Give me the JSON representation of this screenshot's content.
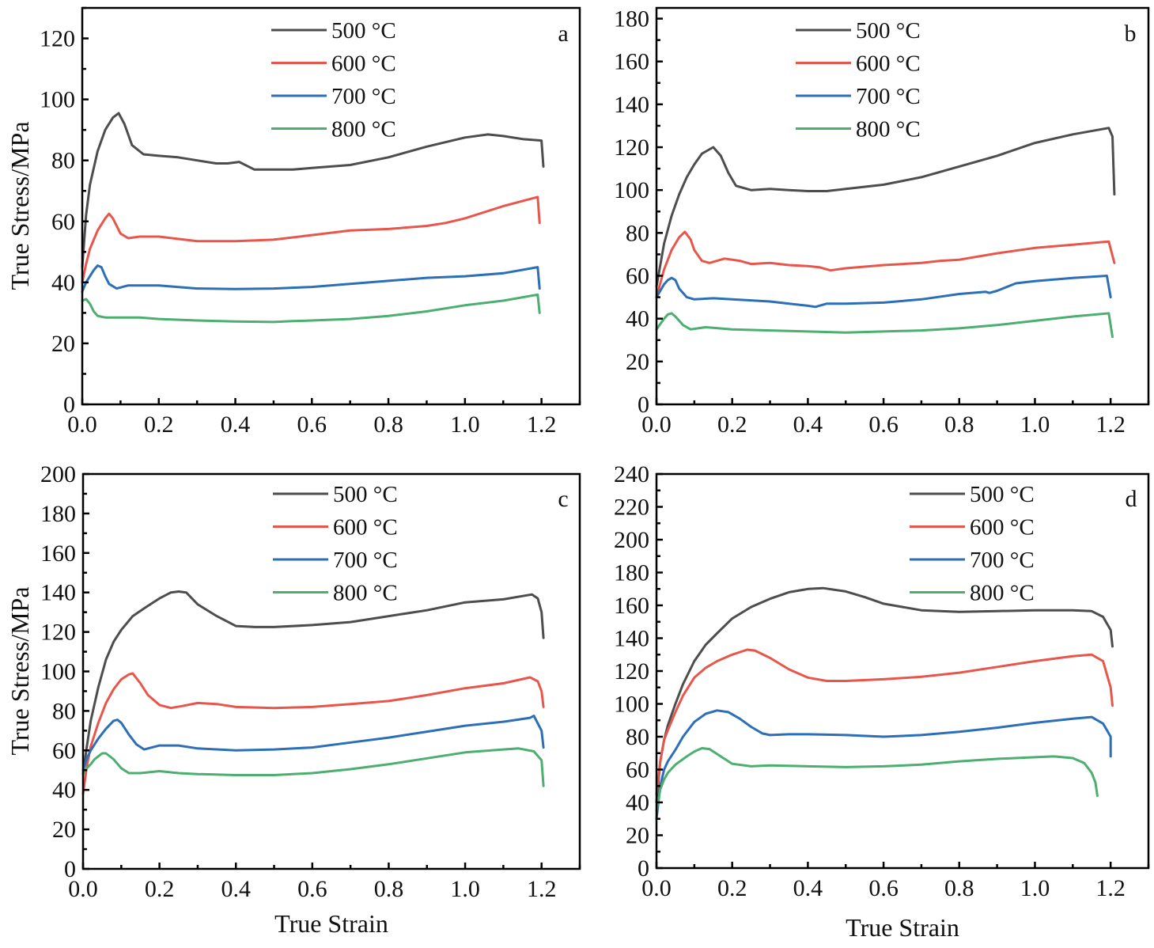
{
  "chart_data": [
    {
      "type": "line",
      "panel": "a",
      "xlabel": "",
      "ylabel": "True Stress/MPa",
      "xlim": [
        0,
        1.3
      ],
      "ylim": [
        0,
        130
      ],
      "xticks": [
        0.0,
        0.2,
        0.4,
        0.6,
        0.8,
        1.0,
        1.2
      ],
      "xtick_labels": [
        "0.0",
        "0.2",
        "0.4",
        "0.6",
        "0.8",
        "1.0",
        "1.2"
      ],
      "yticks": [
        0,
        20,
        40,
        60,
        80,
        100,
        120
      ],
      "ytick_labels": [
        "0",
        "20",
        "40",
        "60",
        "80",
        "100",
        "120"
      ],
      "grid": false,
      "legend_position": "top-center",
      "series": [
        {
          "name": "500 °C",
          "color": "#4d4d4d",
          "x": [
            0.0,
            0.01,
            0.02,
            0.04,
            0.06,
            0.08,
            0.095,
            0.11,
            0.13,
            0.16,
            0.2,
            0.25,
            0.3,
            0.35,
            0.38,
            0.41,
            0.45,
            0.5,
            0.55,
            0.6,
            0.7,
            0.8,
            0.9,
            1.0,
            1.06,
            1.1,
            1.15,
            1.2,
            1.205
          ],
          "y": [
            45,
            62,
            72,
            83,
            90,
            94,
            95.5,
            92,
            85,
            82,
            81.5,
            81,
            80,
            79,
            79,
            79.5,
            77,
            77,
            77,
            77.5,
            78.5,
            81,
            84.5,
            87.5,
            88.5,
            88,
            87,
            86.5,
            78
          ]
        },
        {
          "name": "600 °C",
          "color": "#e8564b",
          "x": [
            0.0,
            0.01,
            0.02,
            0.04,
            0.06,
            0.07,
            0.08,
            0.1,
            0.12,
            0.15,
            0.2,
            0.3,
            0.4,
            0.5,
            0.6,
            0.7,
            0.8,
            0.9,
            0.95,
            1.0,
            1.1,
            1.19,
            1.195
          ],
          "y": [
            40,
            46,
            51,
            57,
            61,
            62.5,
            61,
            56,
            54.5,
            55,
            55,
            53.5,
            53.5,
            54,
            55.5,
            57,
            57.5,
            58.5,
            59.5,
            61,
            65,
            68,
            59.5
          ]
        },
        {
          "name": "700 °C",
          "color": "#2c6fb6",
          "x": [
            0.0,
            0.01,
            0.02,
            0.03,
            0.04,
            0.05,
            0.06,
            0.07,
            0.09,
            0.12,
            0.2,
            0.3,
            0.4,
            0.5,
            0.6,
            0.7,
            0.8,
            0.9,
            1.0,
            1.1,
            1.19,
            1.195
          ],
          "y": [
            37,
            40,
            42,
            44,
            45.5,
            45,
            42,
            39.5,
            38,
            39,
            39,
            38,
            37.8,
            38,
            38.5,
            39.5,
            40.5,
            41.5,
            42,
            43,
            45,
            38
          ]
        },
        {
          "name": "800 °C",
          "color": "#4cae6f",
          "x": [
            0.0,
            0.01,
            0.02,
            0.03,
            0.04,
            0.06,
            0.1,
            0.15,
            0.2,
            0.3,
            0.4,
            0.5,
            0.55,
            0.6,
            0.7,
            0.8,
            0.9,
            1.0,
            1.1,
            1.19,
            1.195
          ],
          "y": [
            34,
            34.5,
            33,
            30.5,
            29,
            28.5,
            28.5,
            28.5,
            28,
            27.5,
            27.2,
            27,
            27.3,
            27.5,
            28,
            29,
            30.5,
            32.5,
            34,
            36,
            30
          ]
        }
      ]
    },
    {
      "type": "line",
      "panel": "b",
      "xlabel": "",
      "ylabel": "",
      "xlim": [
        0,
        1.3
      ],
      "ylim": [
        0,
        185
      ],
      "xticks": [
        0.0,
        0.2,
        0.4,
        0.6,
        0.8,
        1.0,
        1.2
      ],
      "xtick_labels": [
        "0.0",
        "0.2",
        "0.4",
        "0.6",
        "0.8",
        "1.0",
        "1.2"
      ],
      "yticks": [
        0,
        20,
        40,
        60,
        80,
        100,
        120,
        140,
        160,
        180
      ],
      "ytick_labels": [
        "0",
        "20",
        "40",
        "60",
        "80",
        "100",
        "120",
        "140",
        "160",
        "180"
      ],
      "grid": false,
      "legend_position": "top-center",
      "series": [
        {
          "name": "500 °C",
          "color": "#4d4d4d",
          "x": [
            0.0,
            0.02,
            0.04,
            0.06,
            0.08,
            0.1,
            0.12,
            0.15,
            0.17,
            0.19,
            0.21,
            0.25,
            0.3,
            0.35,
            0.4,
            0.45,
            0.5,
            0.6,
            0.7,
            0.8,
            0.9,
            1.0,
            1.1,
            1.195,
            1.205,
            1.21
          ],
          "y": [
            55,
            75,
            88,
            98,
            106,
            112,
            117,
            120,
            116,
            108,
            102,
            100,
            100.5,
            100,
            99.5,
            99.5,
            100.5,
            102.5,
            106,
            111,
            116,
            122,
            126,
            129,
            125,
            98
          ]
        },
        {
          "name": "600 °C",
          "color": "#e8564b",
          "x": [
            0.0,
            0.02,
            0.04,
            0.06,
            0.075,
            0.09,
            0.1,
            0.12,
            0.14,
            0.18,
            0.22,
            0.25,
            0.3,
            0.35,
            0.4,
            0.43,
            0.46,
            0.5,
            0.6,
            0.7,
            0.75,
            0.8,
            0.9,
            1.0,
            1.1,
            1.195,
            1.21
          ],
          "y": [
            50,
            63,
            72,
            78,
            80.5,
            77,
            72,
            67,
            66,
            68,
            67,
            65.5,
            66,
            65,
            64.5,
            64,
            62.5,
            63.5,
            65,
            66,
            67,
            67.5,
            70.5,
            73,
            74.5,
            76,
            66
          ]
        },
        {
          "name": "700 °C",
          "color": "#2c6fb6",
          "x": [
            0.0,
            0.01,
            0.02,
            0.03,
            0.04,
            0.05,
            0.06,
            0.08,
            0.1,
            0.15,
            0.2,
            0.3,
            0.35,
            0.4,
            0.42,
            0.45,
            0.5,
            0.6,
            0.7,
            0.8,
            0.87,
            0.88,
            0.9,
            0.95,
            1.0,
            1.1,
            1.19,
            1.2
          ],
          "y": [
            50,
            53,
            56,
            58,
            59,
            58,
            54,
            50,
            49,
            49.5,
            49,
            48,
            47,
            46,
            45.5,
            47,
            47,
            47.5,
            49,
            51.5,
            52.5,
            52,
            53,
            56.5,
            57.5,
            59,
            60,
            50
          ]
        },
        {
          "name": "800 °C",
          "color": "#4cae6f",
          "x": [
            0.0,
            0.01,
            0.02,
            0.03,
            0.04,
            0.05,
            0.07,
            0.09,
            0.13,
            0.2,
            0.3,
            0.4,
            0.5,
            0.6,
            0.7,
            0.8,
            0.9,
            1.0,
            1.1,
            1.195,
            1.205
          ],
          "y": [
            35,
            37.5,
            40,
            42,
            42.5,
            41,
            37,
            35,
            36,
            35,
            34.5,
            34,
            33.5,
            34,
            34.5,
            35.5,
            37,
            39,
            41,
            42.5,
            31.5
          ]
        }
      ]
    },
    {
      "type": "line",
      "panel": "c",
      "xlabel": "True Strain",
      "ylabel": "True Stress/MPa",
      "xlim": [
        0,
        1.3
      ],
      "ylim": [
        0,
        200
      ],
      "xticks": [
        0.0,
        0.2,
        0.4,
        0.6,
        0.8,
        1.0,
        1.2
      ],
      "xtick_labels": [
        "0.0",
        "0.2",
        "0.4",
        "0.6",
        "0.8",
        "1.0",
        "1.2"
      ],
      "yticks": [
        0,
        20,
        40,
        60,
        80,
        100,
        120,
        140,
        160,
        180,
        200
      ],
      "ytick_labels": [
        "0",
        "20",
        "40",
        "60",
        "80",
        "100",
        "120",
        "140",
        "160",
        "180",
        "200"
      ],
      "grid": false,
      "legend_position": "top-center",
      "series": [
        {
          "name": "500 °C",
          "color": "#4d4d4d",
          "x": [
            0.0,
            0.01,
            0.02,
            0.04,
            0.06,
            0.08,
            0.1,
            0.13,
            0.16,
            0.2,
            0.23,
            0.25,
            0.27,
            0.3,
            0.35,
            0.4,
            0.45,
            0.5,
            0.6,
            0.7,
            0.8,
            0.9,
            1.0,
            1.1,
            1.175,
            1.19,
            1.2,
            1.205
          ],
          "y": [
            48,
            62,
            75,
            92,
            106,
            115,
            121,
            128,
            132,
            137,
            140,
            140.5,
            140,
            134,
            128,
            123,
            122.5,
            122.5,
            123.5,
            125,
            128,
            131,
            135,
            136.5,
            139,
            137,
            130,
            117
          ]
        },
        {
          "name": "600 °C",
          "color": "#e8564b",
          "x": [
            0.0,
            0.01,
            0.02,
            0.04,
            0.06,
            0.08,
            0.1,
            0.12,
            0.13,
            0.15,
            0.17,
            0.2,
            0.23,
            0.26,
            0.3,
            0.35,
            0.4,
            0.5,
            0.6,
            0.7,
            0.8,
            0.9,
            1.0,
            1.1,
            1.17,
            1.19,
            1.2,
            1.205
          ],
          "y": [
            38,
            52,
            62,
            74,
            84,
            91,
            96,
            98.5,
            99,
            94,
            88,
            83,
            81.5,
            82.5,
            84,
            83.5,
            82,
            81.5,
            82,
            83.5,
            85,
            88,
            91.5,
            94,
            97,
            95,
            90,
            82
          ]
        },
        {
          "name": "700 °C",
          "color": "#2c6fb6",
          "x": [
            0.0,
            0.01,
            0.02,
            0.04,
            0.06,
            0.08,
            0.09,
            0.1,
            0.12,
            0.14,
            0.16,
            0.2,
            0.25,
            0.3,
            0.4,
            0.5,
            0.6,
            0.7,
            0.8,
            0.9,
            1.0,
            1.1,
            1.17,
            1.18,
            1.2,
            1.205
          ],
          "y": [
            50,
            56,
            60,
            66,
            71,
            75,
            75.5,
            74,
            68,
            63,
            60.5,
            62.5,
            62.5,
            61,
            60,
            60.5,
            61.5,
            64,
            66.5,
            69.5,
            72.5,
            74.5,
            76.5,
            77.5,
            70,
            61.5
          ]
        },
        {
          "name": "800 °C",
          "color": "#4cae6f",
          "x": [
            0.0,
            0.01,
            0.02,
            0.03,
            0.05,
            0.06,
            0.08,
            0.1,
            0.12,
            0.15,
            0.2,
            0.25,
            0.3,
            0.4,
            0.5,
            0.6,
            0.7,
            0.8,
            0.9,
            1.0,
            1.1,
            1.14,
            1.18,
            1.2,
            1.205
          ],
          "y": [
            48,
            51,
            53,
            55.5,
            58.5,
            58.5,
            55.5,
            51,
            48.5,
            48.5,
            49.5,
            48.5,
            48,
            47.5,
            47.5,
            48.5,
            50.5,
            53,
            56,
            59,
            60.5,
            61,
            59.5,
            55,
            42
          ]
        }
      ]
    },
    {
      "type": "line",
      "panel": "d",
      "xlabel": "True Strain",
      "ylabel": "",
      "xlim": [
        0,
        1.3
      ],
      "ylim": [
        0,
        240
      ],
      "xticks": [
        0.0,
        0.2,
        0.4,
        0.6,
        0.8,
        1.0,
        1.2
      ],
      "xtick_labels": [
        "0.0",
        "0.2",
        "0.4",
        "0.6",
        "0.8",
        "1.0",
        "1.2"
      ],
      "yticks": [
        0,
        20,
        40,
        60,
        80,
        100,
        120,
        140,
        160,
        180,
        200,
        220,
        240
      ],
      "ytick_labels": [
        "0",
        "20",
        "40",
        "60",
        "80",
        "100",
        "120",
        "140",
        "160",
        "180",
        "200",
        "220",
        "240"
      ],
      "grid": false,
      "legend_position": "top-right",
      "series": [
        {
          "name": "500 °C",
          "color": "#4d4d4d",
          "x": [
            0.0,
            0.01,
            0.02,
            0.03,
            0.05,
            0.07,
            0.1,
            0.13,
            0.16,
            0.2,
            0.25,
            0.3,
            0.35,
            0.4,
            0.44,
            0.5,
            0.55,
            0.6,
            0.7,
            0.8,
            0.9,
            1.0,
            1.1,
            1.15,
            1.18,
            1.2,
            1.205
          ],
          "y": [
            40,
            65,
            78,
            87,
            100,
            112,
            126,
            136,
            143,
            152,
            159,
            164,
            168,
            170,
            170.5,
            168.5,
            165,
            161,
            157,
            156,
            156.5,
            157,
            157,
            156.5,
            153,
            145,
            135
          ]
        },
        {
          "name": "600 °C",
          "color": "#e8564b",
          "x": [
            0.0,
            0.01,
            0.02,
            0.03,
            0.05,
            0.07,
            0.1,
            0.13,
            0.16,
            0.2,
            0.24,
            0.26,
            0.3,
            0.35,
            0.4,
            0.45,
            0.5,
            0.6,
            0.7,
            0.8,
            0.9,
            1.0,
            1.1,
            1.15,
            1.18,
            1.2,
            1.205
          ],
          "y": [
            45,
            65,
            78,
            84,
            95,
            105,
            116,
            122,
            126,
            130,
            133,
            132.5,
            128,
            121,
            116,
            114,
            114,
            115,
            116.5,
            119,
            122.5,
            126,
            129,
            130,
            126,
            110,
            99
          ]
        },
        {
          "name": "700 °C",
          "color": "#2c6fb6",
          "x": [
            0.0,
            0.01,
            0.02,
            0.03,
            0.05,
            0.07,
            0.1,
            0.13,
            0.16,
            0.19,
            0.22,
            0.25,
            0.28,
            0.3,
            0.35,
            0.4,
            0.5,
            0.6,
            0.7,
            0.8,
            0.9,
            1.0,
            1.1,
            1.15,
            1.18,
            1.2,
            1.2
          ],
          "y": [
            30,
            50,
            60,
            65,
            72,
            80,
            89,
            94,
            96,
            95,
            91,
            86,
            82,
            81,
            81.5,
            81.5,
            81,
            80,
            81,
            83,
            85.5,
            88.5,
            91,
            92,
            88,
            80,
            68
          ]
        },
        {
          "name": "800 °C",
          "color": "#4cae6f",
          "x": [
            0.0,
            0.01,
            0.02,
            0.03,
            0.05,
            0.08,
            0.1,
            0.12,
            0.14,
            0.17,
            0.2,
            0.25,
            0.3,
            0.4,
            0.5,
            0.6,
            0.7,
            0.8,
            0.9,
            1.0,
            1.05,
            1.1,
            1.13,
            1.15,
            1.16,
            1.165
          ],
          "y": [
            35,
            48,
            54,
            58,
            63,
            68,
            71,
            73,
            72.5,
            68,
            63.5,
            62,
            62.5,
            62,
            61.5,
            62,
            63,
            65,
            66.5,
            67.5,
            68,
            67,
            64,
            58,
            52,
            44
          ]
        }
      ]
    }
  ]
}
